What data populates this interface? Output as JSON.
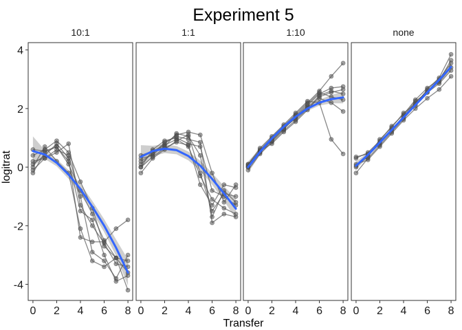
{
  "chart_data": {
    "type": "line",
    "title": "Experiment 5",
    "xlabel": "Transfer",
    "ylabel": "logitrat",
    "xlim": [
      -0.4,
      8.4
    ],
    "ylim": [
      -4.55,
      4.25
    ],
    "x_ticks": [
      0,
      2,
      4,
      6,
      8
    ],
    "y_ticks": [
      4,
      2,
      0,
      -2,
      -4
    ],
    "y_tick_labels": [
      "4",
      "2",
      "0",
      "-2",
      "-4"
    ],
    "grid": false,
    "legend": "none",
    "colors": {
      "individual": "#555555",
      "fit": "#3366ff",
      "ribbon": "#bdbdbd"
    },
    "x": [
      0,
      1,
      2,
      3,
      4,
      5,
      6,
      7,
      8
    ],
    "panels": [
      {
        "label": "10:1",
        "lines": [
          [
            0.6,
            0.55,
            0.7,
            0.1,
            -0.8,
            -1.6,
            -2.5,
            -3.1,
            -3.6
          ],
          [
            0.4,
            0.6,
            0.9,
            0.5,
            -0.5,
            -1.4,
            -2.7,
            -3.1,
            -3.2
          ],
          [
            0.2,
            0.3,
            0.5,
            0.8,
            -1.3,
            -2.0,
            -2.6,
            -3.3,
            -3.4
          ],
          [
            0.1,
            0.4,
            0.8,
            0.3,
            -2.4,
            -2.55,
            -2.55,
            -2.1,
            -1.8
          ],
          [
            0.0,
            0.7,
            0.2,
            -0.2,
            -2.1,
            -3.2,
            -3.4,
            -3.1,
            -4.2
          ],
          [
            -0.1,
            0.3,
            0.6,
            0.4,
            -1.0,
            -2.9,
            -3.2,
            -3.8,
            -3.0
          ],
          [
            -0.2,
            0.5,
            0.7,
            0.2,
            -1.5,
            -1.8,
            -3.0,
            -3.9,
            -3.7
          ]
        ],
        "fit": [
          0.55,
          0.43,
          0.15,
          -0.25,
          -0.75,
          -1.35,
          -2.0,
          -2.75,
          -3.6
        ],
        "band": [
          0.5,
          0.15,
          0.12,
          0.15,
          0.18,
          0.2,
          0.22,
          0.28,
          0.45
        ]
      },
      {
        "label": "1:1",
        "lines": [
          [
            0.3,
            0.4,
            0.8,
            1.1,
            1.2,
            1.1,
            -0.2,
            -1.2,
            -0.6
          ],
          [
            0.0,
            0.6,
            0.9,
            1.0,
            0.8,
            0.7,
            -0.8,
            -1.0,
            -1.3
          ],
          [
            0.4,
            0.55,
            0.75,
            0.95,
            0.7,
            -0.3,
            -1.1,
            -1.4,
            -1.6
          ],
          [
            -0.2,
            0.3,
            0.6,
            0.9,
            1.1,
            -0.2,
            -1.5,
            -0.9,
            -1.0
          ],
          [
            0.1,
            0.5,
            0.7,
            1.15,
            1.05,
            0.4,
            -1.7,
            -0.8,
            -1.2
          ],
          [
            0.2,
            0.45,
            0.85,
            1.05,
            0.95,
            0.85,
            -1.9,
            -1.6,
            -1.7
          ],
          [
            0.0,
            0.35,
            0.65,
            0.85,
            0.75,
            -0.6,
            -1.3,
            -0.6,
            -0.7
          ]
        ],
        "fit": [
          0.35,
          0.55,
          0.63,
          0.58,
          0.38,
          0.05,
          -0.4,
          -0.9,
          -1.42
        ],
        "band": [
          0.4,
          0.18,
          0.15,
          0.14,
          0.15,
          0.17,
          0.2,
          0.25,
          0.35
        ]
      },
      {
        "label": "1:10",
        "lines": [
          [
            0.05,
            0.6,
            1.0,
            1.4,
            1.8,
            2.2,
            2.6,
            3.1,
            3.55
          ],
          [
            0.1,
            0.55,
            0.9,
            1.3,
            1.7,
            2.1,
            2.5,
            2.7,
            2.75
          ],
          [
            0.0,
            0.5,
            0.95,
            1.35,
            1.65,
            2.05,
            2.4,
            2.55,
            2.65
          ],
          [
            -0.1,
            0.45,
            0.85,
            1.25,
            1.6,
            2.0,
            2.35,
            2.2,
            1.9
          ],
          [
            0.1,
            0.65,
            1.05,
            1.45,
            1.85,
            2.25,
            2.2,
            0.95,
            0.45
          ],
          [
            0.0,
            0.55,
            0.8,
            1.2,
            1.55,
            1.95,
            2.45,
            2.6,
            2.5
          ],
          [
            0.05,
            0.5,
            0.9,
            1.3,
            1.75,
            2.15,
            2.55,
            2.4,
            2.3
          ]
        ],
        "fit": [
          0.0,
          0.52,
          0.98,
          1.38,
          1.72,
          2.0,
          2.2,
          2.32,
          2.38
        ],
        "band": [
          0.2,
          0.1,
          0.08,
          0.07,
          0.07,
          0.08,
          0.1,
          0.14,
          0.2
        ]
      },
      {
        "label": "none",
        "lines": [
          [
            0.0,
            0.4,
            0.8,
            1.3,
            1.7,
            2.2,
            2.6,
            2.9,
            3.4
          ],
          [
            0.3,
            0.5,
            0.9,
            1.4,
            1.8,
            2.3,
            2.7,
            3.0,
            3.55
          ],
          [
            -0.2,
            0.3,
            0.75,
            1.2,
            1.65,
            2.1,
            2.55,
            2.95,
            3.65
          ],
          [
            0.35,
            0.45,
            0.85,
            1.25,
            1.75,
            2.25,
            2.55,
            2.85,
            3.3
          ],
          [
            0.1,
            0.25,
            0.7,
            1.15,
            1.6,
            2.0,
            2.35,
            2.65,
            3.1
          ],
          [
            0.05,
            0.35,
            0.95,
            1.35,
            1.85,
            2.15,
            2.65,
            3.05,
            3.85
          ]
        ],
        "fit": [
          0.05,
          0.42,
          0.84,
          1.27,
          1.7,
          2.12,
          2.55,
          2.98,
          3.42
        ],
        "band": [
          0.14,
          0.08,
          0.06,
          0.05,
          0.05,
          0.05,
          0.06,
          0.08,
          0.14
        ]
      }
    ]
  }
}
